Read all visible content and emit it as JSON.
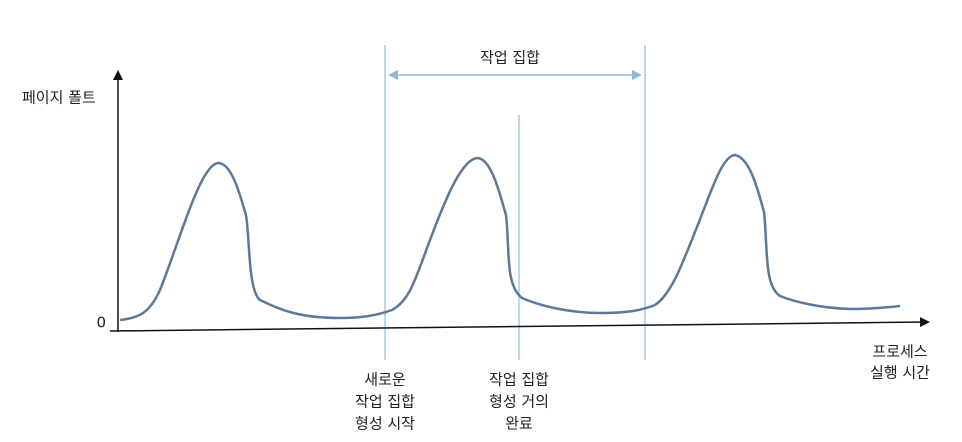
{
  "axes": {
    "y_label": "페이지 폴트",
    "origin": "0",
    "x_label": [
      "프로세스",
      "실행 시간"
    ]
  },
  "annotations": {
    "working_set": "작업 집합",
    "start": [
      "새로운",
      "작업 집합",
      "형성 시작"
    ],
    "near_complete": [
      "작업 집합",
      "형성 거의",
      "완료"
    ]
  }
}
